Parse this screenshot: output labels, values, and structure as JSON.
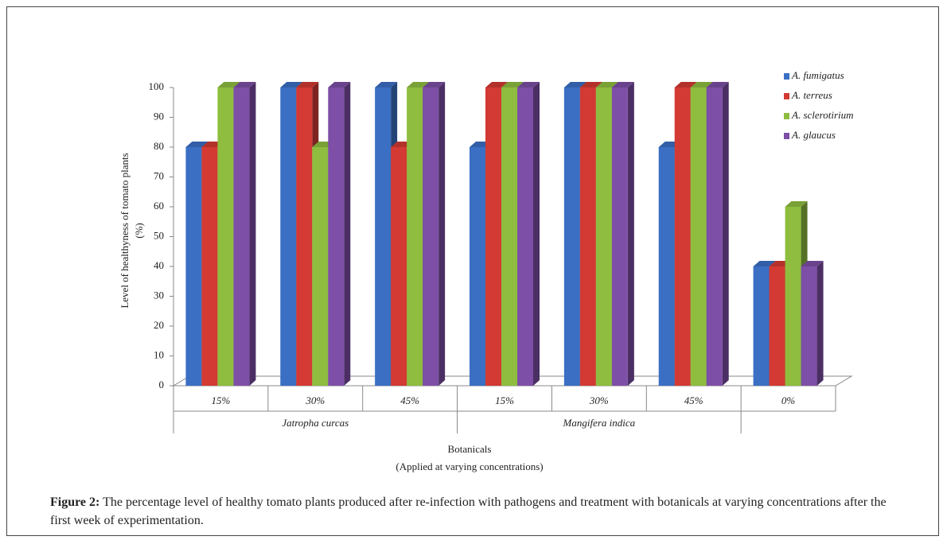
{
  "chart_data": {
    "type": "bar3d",
    "y_label": [
      "Level of healthyness of tomato plants",
      "(%)"
    ],
    "x_label": [
      "Botanicals",
      "(Applied at varying concentrations)"
    ],
    "category_groups": [
      {
        "name": "Jatropha curcas",
        "categories": [
          "15%",
          "30%",
          "45%"
        ]
      },
      {
        "name": "Mangifera indica",
        "categories": [
          "15%",
          "30%",
          "45%"
        ]
      },
      {
        "name": null,
        "categories": [
          "0%"
        ]
      }
    ],
    "series": [
      {
        "name": "A. fumigatus",
        "color": "#3a6fc4",
        "values": [
          80,
          100,
          100,
          80,
          100,
          80,
          40
        ]
      },
      {
        "name": "A. terreus",
        "color": "#d23a33",
        "values": [
          80,
          100,
          80,
          100,
          100,
          100,
          40
        ]
      },
      {
        "name": "A. sclerotirium",
        "color": "#8ebd3f",
        "values": [
          100,
          80,
          100,
          100,
          100,
          100,
          60
        ]
      },
      {
        "name": "A. glaucus",
        "color": "#7d4fa6",
        "values": [
          100,
          100,
          100,
          100,
          100,
          100,
          40
        ]
      }
    ],
    "ylim": [
      0,
      100
    ],
    "yticks": [
      0,
      10,
      20,
      30,
      40,
      50,
      60,
      70,
      80,
      90,
      100
    ],
    "legend": "top-right",
    "caption": {
      "label": "Figure 2:",
      "text": "The percentage level of healthy tomato plants produced after re-infection with pathogens and treatment with botanicals at varying concentrations after the first week of experimentation."
    }
  }
}
